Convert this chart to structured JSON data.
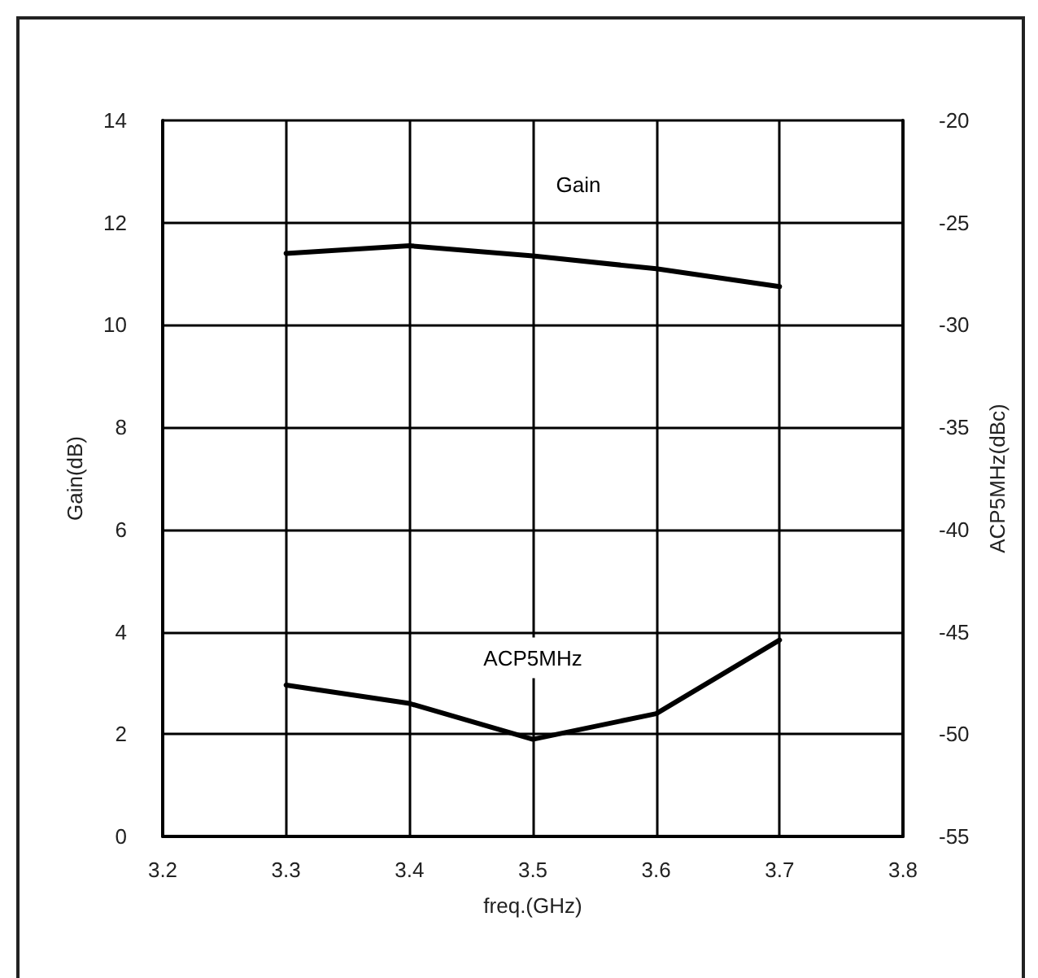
{
  "chart_data": {
    "type": "line",
    "xlabel": "freq.(GHz)",
    "ylabel": "Gain(dB)",
    "y2label": "ACP5MHz(dBc)",
    "x": [
      3.3,
      3.4,
      3.5,
      3.6,
      3.7
    ],
    "series": [
      {
        "name": "Gain",
        "color": "#000000",
        "values": [
          11.4,
          11.55,
          11.35,
          11.1,
          10.75
        ]
      },
      {
        "name": "ACP5MHz",
        "color": "#000000",
        "axis": "y2",
        "values": [
          -47.6,
          -48.5,
          -50.25,
          -49,
          -45.4
        ]
      }
    ],
    "xlim": [
      3.2,
      3.8
    ],
    "xticks": [
      3.2,
      3.3,
      3.4,
      3.5,
      3.6,
      3.7,
      3.8
    ],
    "ylim": [
      0,
      14
    ],
    "yticks": [
      0,
      2,
      4,
      6,
      8,
      10,
      12,
      14
    ],
    "y2lim": [
      -55,
      -20
    ],
    "y2ticks": [
      -55,
      -50,
      -45,
      -40,
      -35,
      -30,
      -25,
      -20
    ],
    "grid": true,
    "legend": false,
    "marker": "none",
    "line_style": "solid"
  }
}
